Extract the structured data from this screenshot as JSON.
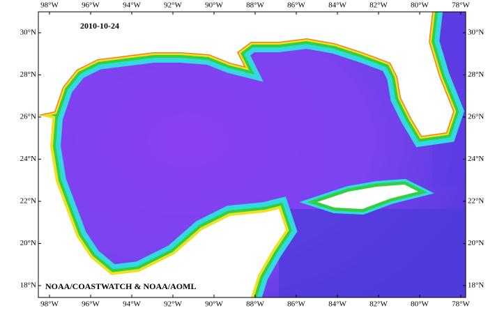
{
  "map": {
    "date": "2010-10-24",
    "credit": "NOAA/COASTWATCH & NOAA/AOML",
    "lon_labels": [
      "98°W",
      "96°W",
      "94°W",
      "92°W",
      "90°W",
      "88°W",
      "86°W",
      "84°W",
      "82°W",
      "80°W",
      "78°W"
    ],
    "lat_labels": [
      "30°N",
      "28°N",
      "26°N",
      "24°N",
      "22°N",
      "20°N",
      "18°N"
    ]
  }
}
